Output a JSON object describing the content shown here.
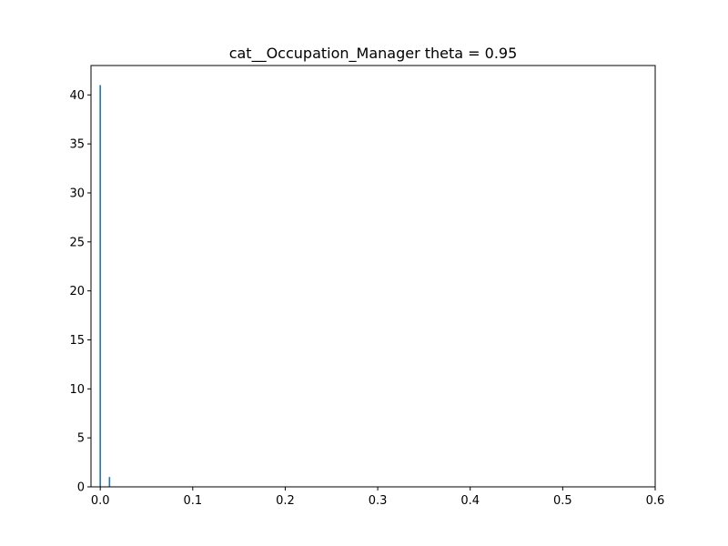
{
  "chart_data": {
    "type": "bar",
    "title": "cat__Occupation_Manager theta = 0.95",
    "xlabel": "",
    "ylabel": "",
    "xlim": [
      -0.01,
      0.6
    ],
    "ylim": [
      0,
      43
    ],
    "x_ticks": [
      0.0,
      0.1,
      0.2,
      0.3,
      0.4,
      0.5,
      0.6
    ],
    "x_tick_labels": [
      "0.0",
      "0.1",
      "0.2",
      "0.3",
      "0.4",
      "0.5",
      "0.6"
    ],
    "y_ticks": [
      0,
      5,
      10,
      15,
      20,
      25,
      30,
      35,
      40
    ],
    "y_tick_labels": [
      "0",
      "5",
      "10",
      "15",
      "20",
      "25",
      "30",
      "35",
      "40"
    ],
    "grid": false,
    "bar_color": "#1f77b4",
    "bars": [
      {
        "x": 0.0,
        "value": 41
      },
      {
        "x": 0.01,
        "value": 1
      }
    ]
  }
}
